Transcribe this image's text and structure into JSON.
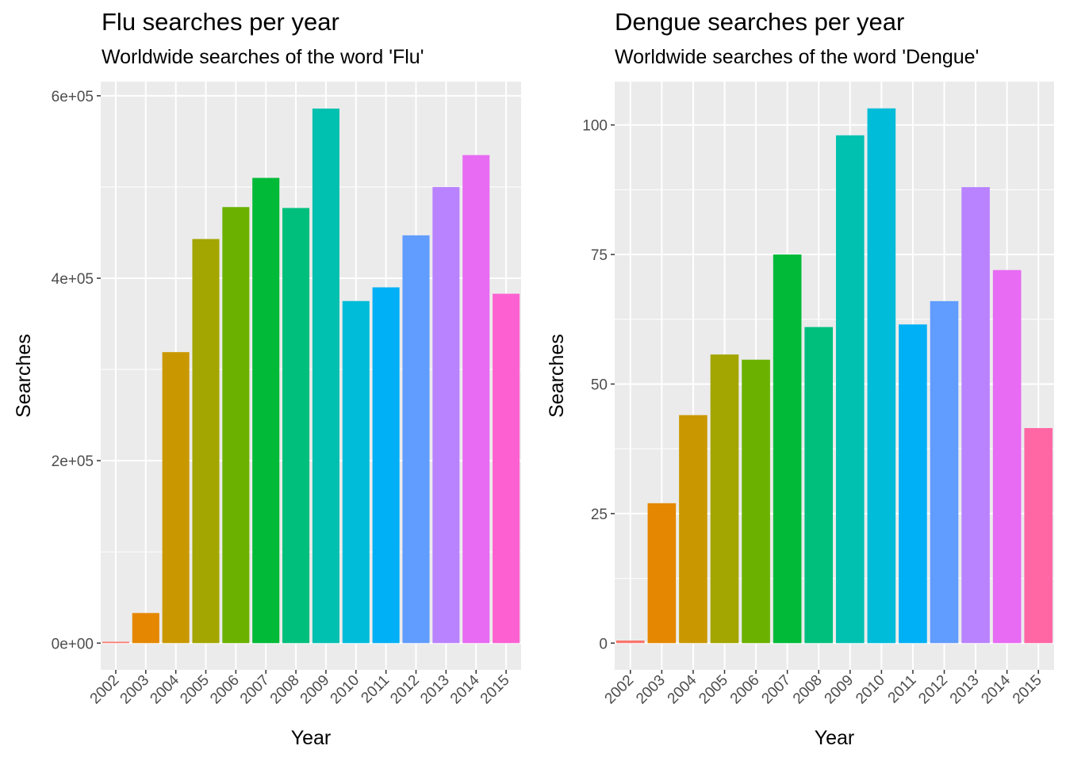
{
  "chart_data": [
    {
      "type": "bar",
      "title": "Flu searches per year",
      "subtitle": "Worldwide searches of the word 'Flu'",
      "xlabel": "Year",
      "ylabel": "Searches",
      "categories": [
        "2002",
        "2003",
        "2004",
        "2005",
        "2006",
        "2007",
        "2008",
        "2009",
        "2010",
        "2011",
        "2012",
        "2013",
        "2014",
        "2015"
      ],
      "values": [
        1500,
        33000,
        319000,
        443000,
        478000,
        510000,
        477000,
        586000,
        375000,
        390000,
        447000,
        500000,
        535000,
        383000
      ],
      "yticks": [
        0,
        200000,
        400000,
        600000
      ],
      "ytick_labels": [
        "0e+00",
        "2e+05",
        "4e+05",
        "6e+05"
      ],
      "ylim": [
        -29300,
        615500
      ],
      "grid": true,
      "legend": "none",
      "colors": [
        "#F8766D",
        "#E58700",
        "#C99800",
        "#A3A500",
        "#6BB100",
        "#00BA38",
        "#00BF7D",
        "#00C0AF",
        "#00BCD8",
        "#00B0F6",
        "#619CFF",
        "#B983FF",
        "#E76BF3",
        "#FD61D1"
      ]
    },
    {
      "type": "bar",
      "title": "Dengue searches per year",
      "subtitle": "Worldwide searches of the word 'Dengue'",
      "xlabel": "Year",
      "ylabel": "Searches",
      "categories": [
        "2002",
        "2003",
        "2004",
        "2005",
        "2006",
        "2007",
        "2008",
        "2009",
        "2010",
        "2011",
        "2012",
        "2013",
        "2014",
        "2015"
      ],
      "values": [
        0.5,
        27,
        44,
        55.7,
        54.7,
        75,
        61,
        98,
        103.2,
        61.5,
        66,
        88,
        72,
        41.5
      ],
      "yticks": [
        0,
        25,
        50,
        75,
        100
      ],
      "ytick_labels": [
        "0",
        "25",
        "50",
        "75",
        "100"
      ],
      "ylim": [
        -5.16,
        108.36
      ],
      "grid": true,
      "legend": "none",
      "colors": [
        "#F8766D",
        "#E58700",
        "#C99800",
        "#A3A500",
        "#6BB100",
        "#00BA38",
        "#00BF7D",
        "#00C0AF",
        "#00BCD8",
        "#00B0F6",
        "#619CFF",
        "#B983FF",
        "#E76BF3",
        "#FF67A4"
      ]
    }
  ]
}
